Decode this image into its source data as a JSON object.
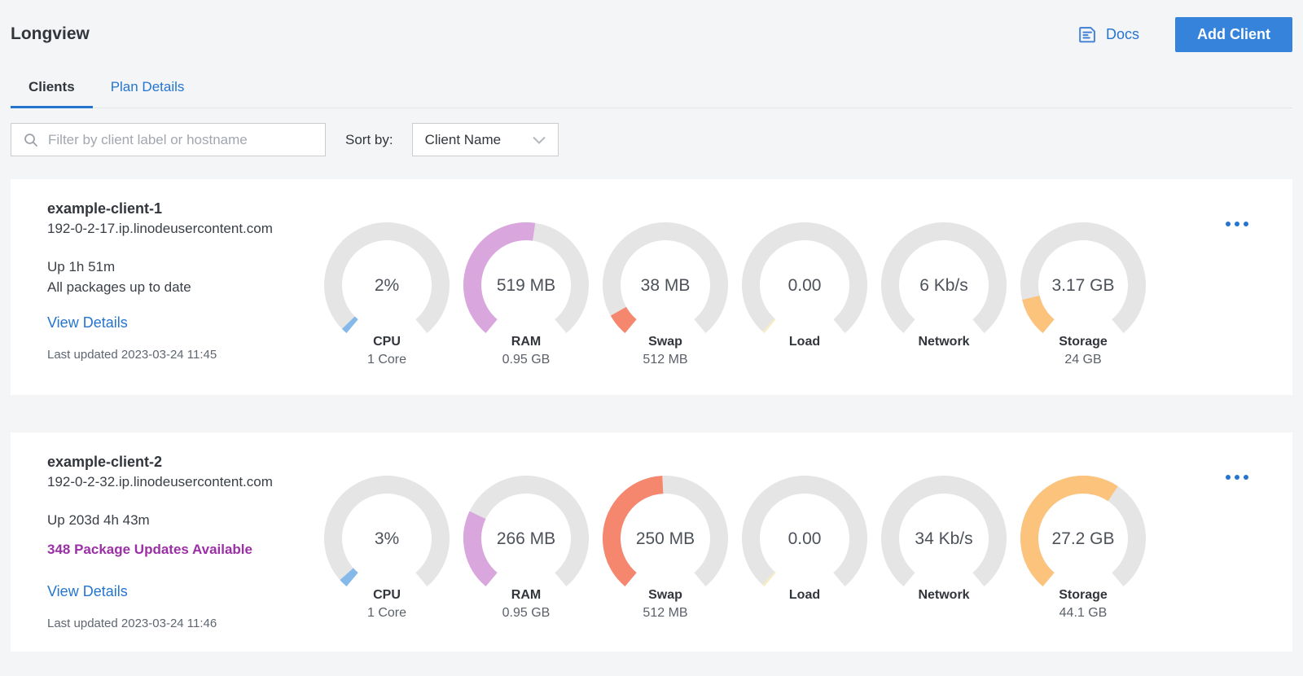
{
  "page": {
    "title": "Longview",
    "docs_label": "Docs",
    "add_client_label": "Add Client"
  },
  "tabs": [
    {
      "label": "Clients",
      "active": true
    },
    {
      "label": "Plan Details",
      "active": false
    }
  ],
  "filter": {
    "search_placeholder": "Filter by client label or hostname",
    "sort_label": "Sort by:",
    "sort_value": "Client Name"
  },
  "colors": {
    "link_blue": "#2575d0",
    "button_blue": "#3683dc",
    "package_purple": "#9b2fa5",
    "gauge_track": "#e5e5e5",
    "cpu_blue": "#85b9ea",
    "ram_purple": "#d9a7dd",
    "swap_salmon": "#f5876f",
    "load_cream": "#f6ecc5",
    "storage_orange": "#fbc37c"
  },
  "clients": [
    {
      "name": "example-client-1",
      "hostname": "192-0-2-17.ip.linodeusercontent.com",
      "uptime": "Up 1h 51m",
      "packages": "All packages up to date",
      "packages_highlight": false,
      "view_details_label": "View Details",
      "last_updated": "Last updated 2023-03-24 11:45",
      "gauges": [
        {
          "metric": "CPU",
          "value": "2%",
          "sublabel": "1 Core",
          "fraction": 0.02,
          "color": "#85b9ea"
        },
        {
          "metric": "RAM",
          "value": "519 MB",
          "sublabel": "0.95 GB",
          "fraction": 0.53,
          "color": "#d9a7dd"
        },
        {
          "metric": "Swap",
          "value": "38 MB",
          "sublabel": "512 MB",
          "fraction": 0.074,
          "color": "#f5876f"
        },
        {
          "metric": "Load",
          "value": "0.00",
          "sublabel": "",
          "fraction": 0.008,
          "color": "#f6ecc5"
        },
        {
          "metric": "Network",
          "value": "6 Kb/s",
          "sublabel": "",
          "fraction": 0,
          "color": "#85b9ea"
        },
        {
          "metric": "Storage",
          "value": "3.17 GB",
          "sublabel": "24 GB",
          "fraction": 0.13,
          "color": "#fbc37c"
        }
      ]
    },
    {
      "name": "example-client-2",
      "hostname": "192-0-2-32.ip.linodeusercontent.com",
      "uptime": "Up 203d 4h 43m",
      "packages": "348 Package Updates Available",
      "packages_highlight": true,
      "view_details_label": "View Details",
      "last_updated": "Last updated 2023-03-24 11:46",
      "gauges": [
        {
          "metric": "CPU",
          "value": "3%",
          "sublabel": "1 Core",
          "fraction": 0.03,
          "color": "#85b9ea"
        },
        {
          "metric": "RAM",
          "value": "266 MB",
          "sublabel": "0.95 GB",
          "fraction": 0.27,
          "color": "#d9a7dd"
        },
        {
          "metric": "Swap",
          "value": "250 MB",
          "sublabel": "512 MB",
          "fraction": 0.49,
          "color": "#f5876f"
        },
        {
          "metric": "Load",
          "value": "0.00",
          "sublabel": "",
          "fraction": 0.008,
          "color": "#f6ecc5"
        },
        {
          "metric": "Network",
          "value": "34 Kb/s",
          "sublabel": "",
          "fraction": 0,
          "color": "#85b9ea"
        },
        {
          "metric": "Storage",
          "value": "27.2 GB",
          "sublabel": "44.1 GB",
          "fraction": 0.62,
          "color": "#fbc37c"
        }
      ]
    }
  ]
}
